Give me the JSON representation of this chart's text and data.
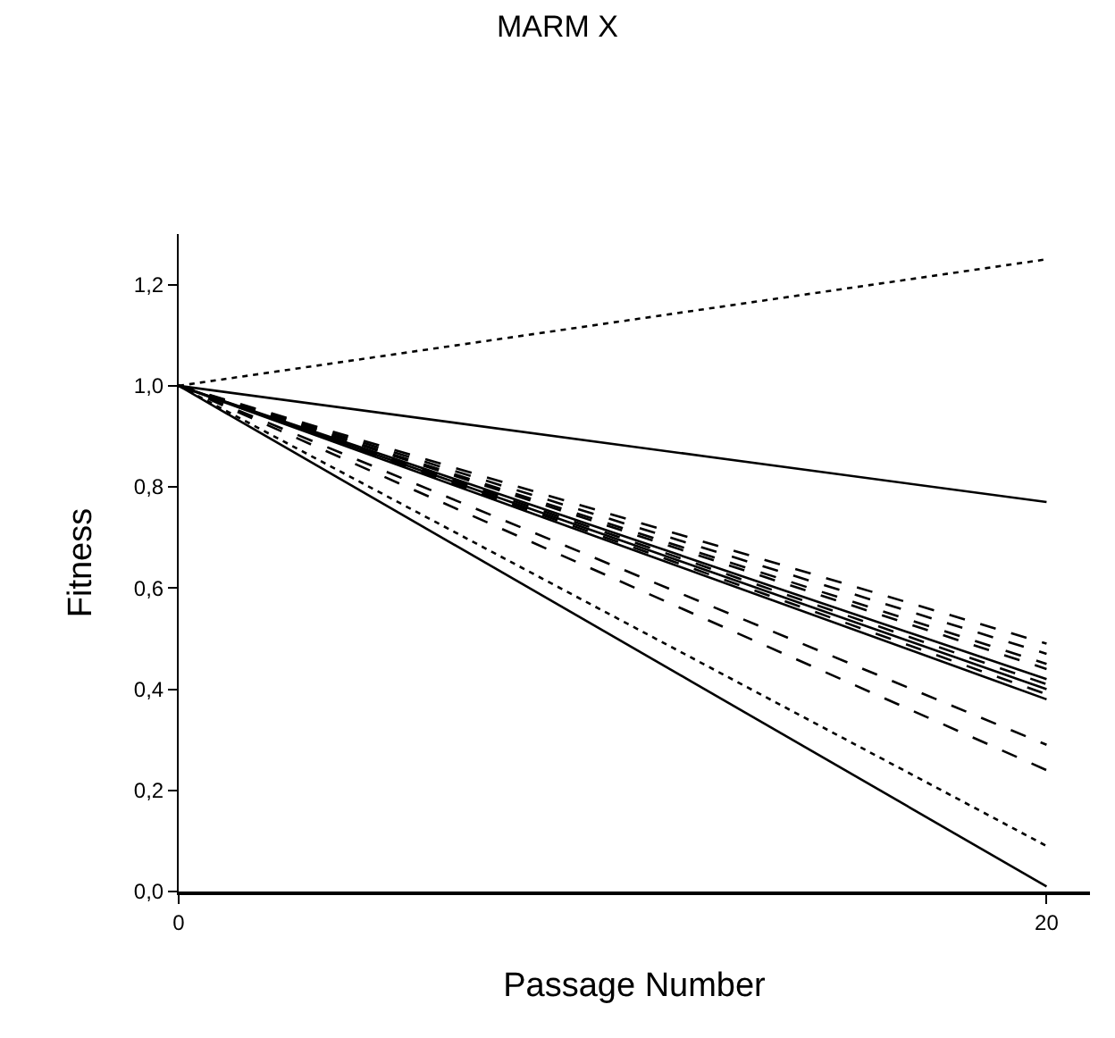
{
  "chart_data": {
    "type": "line",
    "title": "MARM X",
    "xlabel": "Passage Number",
    "ylabel": "Fitness",
    "x": [
      0,
      20
    ],
    "xlim": [
      0,
      21
    ],
    "xticks": [
      0,
      20
    ],
    "ylim": [
      0,
      1.3
    ],
    "yticks": [
      {
        "value": 0,
        "label": "0,0"
      },
      {
        "value": 0.2,
        "label": "0,2"
      },
      {
        "value": 0.4,
        "label": "0,4"
      },
      {
        "value": 0.6,
        "label": "0,6"
      },
      {
        "value": 0.8,
        "label": "0,8"
      },
      {
        "value": 1,
        "label": "1,0"
      },
      {
        "value": 1.2,
        "label": "1,2"
      }
    ],
    "grid": false,
    "marker": "none",
    "series": [
      {
        "color": "#000000",
        "line_style": "dotted",
        "values": [
          1,
          1.25
        ]
      },
      {
        "color": "#000000",
        "line_style": "solid",
        "values": [
          1,
          0.77
        ]
      },
      {
        "color": "#000000",
        "line_style": "dashed",
        "values": [
          1,
          0.49
        ]
      },
      {
        "color": "#000000",
        "line_style": "dashed",
        "values": [
          1,
          0.47
        ]
      },
      {
        "color": "#000000",
        "line_style": "dashed",
        "values": [
          1,
          0.45
        ]
      },
      {
        "color": "#000000",
        "line_style": "dashed",
        "values": [
          1,
          0.44
        ]
      },
      {
        "color": "#000000",
        "line_style": "solid",
        "values": [
          1,
          0.42
        ]
      },
      {
        "color": "#000000",
        "line_style": "dashed",
        "values": [
          1,
          0.41
        ]
      },
      {
        "color": "#000000",
        "line_style": "solid",
        "values": [
          1,
          0.4
        ]
      },
      {
        "color": "#000000",
        "line_style": "dashed",
        "values": [
          1,
          0.39
        ]
      },
      {
        "color": "#000000",
        "line_style": "solid",
        "values": [
          1,
          0.38
        ]
      },
      {
        "color": "#000000",
        "line_style": "dashed",
        "values": [
          1,
          0.29
        ]
      },
      {
        "color": "#000000",
        "line_style": "dashed",
        "values": [
          1,
          0.24
        ]
      },
      {
        "color": "#000000",
        "line_style": "dotted",
        "values": [
          1,
          0.09
        ]
      },
      {
        "color": "#000000",
        "line_style": "solid",
        "values": [
          1,
          0.01
        ]
      }
    ]
  }
}
